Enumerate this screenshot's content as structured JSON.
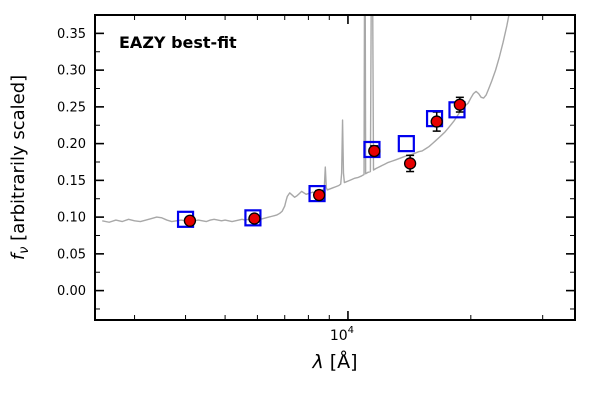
{
  "figure": {
    "background": "#ffffff",
    "accent_red": "#e60000",
    "accent_blue": "#0000ee",
    "spectrum_gray": "#a8a8a8"
  },
  "chart_data": {
    "type": "line",
    "title": "",
    "x_scale": "log",
    "xlim": [
      2400,
      36000
    ],
    "ylim": [
      -0.04,
      0.375
    ],
    "xlabel": {
      "symbol": "λ",
      "rest": " [Å]"
    },
    "ylabel": {
      "symbol": "f",
      "sub": "ν",
      "rest": " [arbitrarily scaled]"
    },
    "annotation": {
      "text": "EAZY best-fit",
      "color": "#ff0000"
    },
    "grid": false,
    "legend": "none",
    "yticks": {
      "values": [
        0.0,
        0.05,
        0.1,
        0.15,
        0.2,
        0.25,
        0.3,
        0.35
      ],
      "labels": [
        "0.00",
        "0.05",
        "0.10",
        "0.15",
        "0.20",
        "0.25",
        "0.30",
        "0.35"
      ],
      "minor_step": 0.025
    },
    "xticks": {
      "major": [
        10000
      ],
      "major_label": {
        "base": "10",
        "exp": "4"
      },
      "minor": [
        3000,
        4000,
        5000,
        6000,
        7000,
        8000,
        9000,
        20000,
        30000
      ]
    },
    "series": [
      {
        "name": "eazy-model-spectrum",
        "type": "line",
        "color": "#a8a8a8",
        "width": 1.4,
        "points": [
          [
            2500,
            0.095
          ],
          [
            2600,
            0.093
          ],
          [
            2700,
            0.096
          ],
          [
            2800,
            0.094
          ],
          [
            2900,
            0.097
          ],
          [
            3000,
            0.095
          ],
          [
            3100,
            0.094
          ],
          [
            3200,
            0.096
          ],
          [
            3300,
            0.098
          ],
          [
            3400,
            0.1
          ],
          [
            3500,
            0.099
          ],
          [
            3600,
            0.096
          ],
          [
            3700,
            0.094
          ],
          [
            3800,
            0.095
          ],
          [
            3900,
            0.096
          ],
          [
            4000,
            0.095
          ],
          [
            4100,
            0.094
          ],
          [
            4200,
            0.095
          ],
          [
            4300,
            0.096
          ],
          [
            4400,
            0.095
          ],
          [
            4500,
            0.094
          ],
          [
            4600,
            0.096
          ],
          [
            4700,
            0.097
          ],
          [
            4800,
            0.096
          ],
          [
            4900,
            0.095
          ],
          [
            5000,
            0.096
          ],
          [
            5100,
            0.095
          ],
          [
            5200,
            0.094
          ],
          [
            5300,
            0.095
          ],
          [
            5400,
            0.096
          ],
          [
            5500,
            0.097
          ],
          [
            5600,
            0.096
          ],
          [
            5700,
            0.097
          ],
          [
            5800,
            0.098
          ],
          [
            5900,
            0.099
          ],
          [
            6000,
            0.098
          ],
          [
            6100,
            0.097
          ],
          [
            6200,
            0.098
          ],
          [
            6300,
            0.099
          ],
          [
            6400,
            0.1
          ],
          [
            6500,
            0.101
          ],
          [
            6600,
            0.102
          ],
          [
            6700,
            0.103
          ],
          [
            6800,
            0.105
          ],
          [
            6900,
            0.108
          ],
          [
            7000,
            0.115
          ],
          [
            7050,
            0.122
          ],
          [
            7100,
            0.128
          ],
          [
            7200,
            0.133
          ],
          [
            7300,
            0.13
          ],
          [
            7400,
            0.127
          ],
          [
            7500,
            0.129
          ],
          [
            7600,
            0.132
          ],
          [
            7700,
            0.135
          ],
          [
            7800,
            0.133
          ],
          [
            7900,
            0.131
          ],
          [
            8000,
            0.132
          ],
          [
            8100,
            0.133
          ],
          [
            8200,
            0.134
          ],
          [
            8300,
            0.133
          ],
          [
            8400,
            0.134
          ],
          [
            8500,
            0.135
          ],
          [
            8600,
            0.136
          ],
          [
            8700,
            0.137
          ],
          [
            8750,
            0.14
          ],
          [
            8800,
            0.168
          ],
          [
            8850,
            0.14
          ],
          [
            8900,
            0.137
          ],
          [
            9000,
            0.138
          ],
          [
            9100,
            0.139
          ],
          [
            9200,
            0.14
          ],
          [
            9300,
            0.141
          ],
          [
            9400,
            0.142
          ],
          [
            9500,
            0.143
          ],
          [
            9600,
            0.145
          ],
          [
            9650,
            0.16
          ],
          [
            9700,
            0.232
          ],
          [
            9750,
            0.16
          ],
          [
            9800,
            0.147
          ],
          [
            9900,
            0.148
          ],
          [
            10000,
            0.149
          ],
          [
            10100,
            0.15
          ],
          [
            10200,
            0.151
          ],
          [
            10400,
            0.153
          ],
          [
            10600,
            0.154
          ],
          [
            10800,
            0.156
          ],
          [
            10950,
            0.158
          ],
          [
            11000,
            0.6
          ],
          [
            11050,
            0.159
          ],
          [
            11200,
            0.161
          ],
          [
            11350,
            0.162
          ],
          [
            11450,
            0.6
          ],
          [
            11550,
            0.164
          ],
          [
            11700,
            0.166
          ],
          [
            11900,
            0.168
          ],
          [
            12100,
            0.17
          ],
          [
            12300,
            0.172
          ],
          [
            12500,
            0.174
          ],
          [
            12800,
            0.176
          ],
          [
            13100,
            0.178
          ],
          [
            13400,
            0.18
          ],
          [
            13700,
            0.182
          ],
          [
            14000,
            0.184
          ],
          [
            14300,
            0.185
          ],
          [
            14600,
            0.187
          ],
          [
            14900,
            0.189
          ],
          [
            15200,
            0.19
          ],
          [
            15500,
            0.193
          ],
          [
            15800,
            0.196
          ],
          [
            16100,
            0.2
          ],
          [
            16400,
            0.204
          ],
          [
            16700,
            0.208
          ],
          [
            17000,
            0.212
          ],
          [
            17300,
            0.216
          ],
          [
            17600,
            0.221
          ],
          [
            17900,
            0.226
          ],
          [
            18200,
            0.231
          ],
          [
            18500,
            0.237
          ],
          [
            18800,
            0.243
          ],
          [
            19100,
            0.248
          ],
          [
            19400,
            0.252
          ],
          [
            19700,
            0.255
          ],
          [
            20000,
            0.262
          ],
          [
            20300,
            0.268
          ],
          [
            20600,
            0.271
          ],
          [
            20900,
            0.268
          ],
          [
            21200,
            0.263
          ],
          [
            21500,
            0.262
          ],
          [
            21800,
            0.266
          ],
          [
            22100,
            0.274
          ],
          [
            22500,
            0.285
          ],
          [
            23000,
            0.3
          ],
          [
            23500,
            0.318
          ],
          [
            24000,
            0.338
          ],
          [
            24500,
            0.36
          ],
          [
            25000,
            0.385
          ],
          [
            25500,
            0.41
          ]
        ]
      },
      {
        "name": "model-photometry",
        "type": "scatter",
        "marker": "open-square",
        "color": "#0000ee",
        "marker_size": 15,
        "points": [
          [
            4000,
            0.097
          ],
          [
            5850,
            0.099
          ],
          [
            8400,
            0.132
          ],
          [
            11450,
            0.192
          ],
          [
            13900,
            0.2
          ],
          [
            16300,
            0.234
          ],
          [
            18500,
            0.246
          ]
        ]
      },
      {
        "name": "observed-photometry",
        "type": "scatter",
        "marker": "filled-circle",
        "color": "#e60000",
        "edge_color": "#000000",
        "marker_size": 11,
        "points": [
          [
            4100,
            0.095
          ],
          [
            5900,
            0.098
          ],
          [
            8500,
            0.13
          ],
          [
            11600,
            0.19
          ],
          [
            14200,
            0.173
          ],
          [
            16500,
            0.23
          ],
          [
            18800,
            0.253
          ]
        ],
        "yerr": [
          0.005,
          0.005,
          0.006,
          0.007,
          0.011,
          0.013,
          0.01
        ]
      }
    ]
  }
}
